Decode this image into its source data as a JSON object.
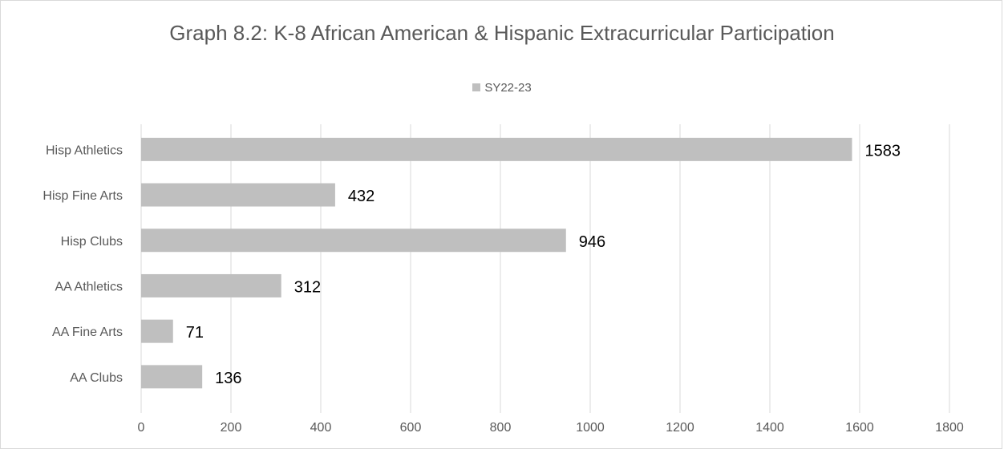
{
  "chart_data": {
    "type": "bar",
    "orientation": "horizontal",
    "title": "Graph 8.2: K-8 African American & Hispanic Extracurricular Participation",
    "categories": [
      "Hisp Athletics",
      "Hisp Fine Arts",
      "Hisp Clubs",
      "AA Athletics",
      "AA Fine Arts",
      "AA Clubs"
    ],
    "series": [
      {
        "name": "SY22-23",
        "values": [
          1583,
          432,
          946,
          312,
          71,
          136
        ],
        "color": "#bfbfbf"
      }
    ],
    "xlim": [
      0,
      1800
    ],
    "xticks": [
      0,
      200,
      400,
      600,
      800,
      1000,
      1200,
      1400,
      1600,
      1800
    ],
    "xlabel": "",
    "ylabel": "",
    "grid": "vertical",
    "legend_position": "top",
    "data_labels": true
  }
}
